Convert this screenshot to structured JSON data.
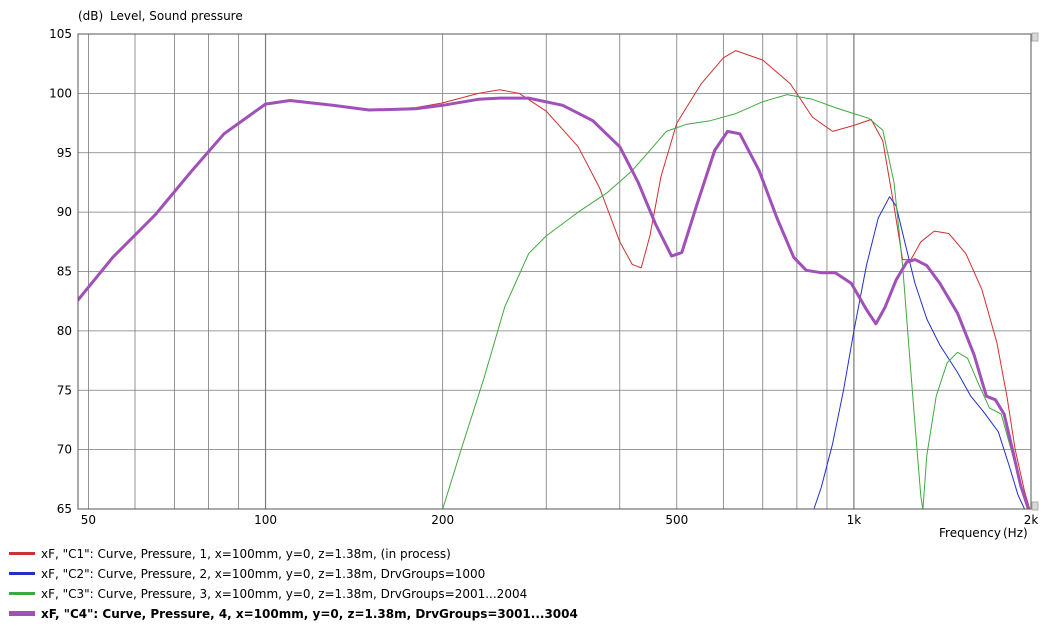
{
  "chart_data": {
    "type": "line",
    "y_unit": "(dB)",
    "ylabel": "Level, Sound pressure",
    "xlabel": "Frequency",
    "x_unit": "(Hz)",
    "xscale": "log",
    "xlim": [
      48,
      2000
    ],
    "ylim": [
      65,
      105
    ],
    "yticks": [
      65,
      70,
      75,
      80,
      85,
      90,
      95,
      100,
      105
    ],
    "xticks": [
      {
        "value": 50,
        "label": "50"
      },
      {
        "value": 100,
        "label": "100"
      },
      {
        "value": 200,
        "label": "200"
      },
      {
        "value": 500,
        "label": "500"
      },
      {
        "value": 1000,
        "label": "1k"
      },
      {
        "value": 2000,
        "label": "2k"
      }
    ],
    "grid": true,
    "legend_position": "bottom",
    "series": [
      {
        "name": "xF, \"C1\": Curve, Pressure, 1, x=100mm, y=0, z=1.38m, (in process)",
        "color": "#d03030",
        "points": [
          [
            48,
            82.6
          ],
          [
            55,
            86.2
          ],
          [
            65,
            89.8
          ],
          [
            75,
            93.5
          ],
          [
            85,
            96.6
          ],
          [
            100,
            99.1
          ],
          [
            110,
            99.4
          ],
          [
            130,
            99.0
          ],
          [
            150,
            98.6
          ],
          [
            180,
            98.8
          ],
          [
            200,
            99.2
          ],
          [
            230,
            100.0
          ],
          [
            250,
            100.3
          ],
          [
            270,
            100.0
          ],
          [
            300,
            98.5
          ],
          [
            340,
            95.5
          ],
          [
            370,
            92.0
          ],
          [
            400,
            87.5
          ],
          [
            420,
            85.6
          ],
          [
            435,
            85.3
          ],
          [
            450,
            88.0
          ],
          [
            470,
            93.0
          ],
          [
            500,
            97.5
          ],
          [
            550,
            100.8
          ],
          [
            600,
            103.0
          ],
          [
            630,
            103.6
          ],
          [
            700,
            102.8
          ],
          [
            780,
            100.8
          ],
          [
            850,
            98.0
          ],
          [
            920,
            96.8
          ],
          [
            1000,
            97.3
          ],
          [
            1070,
            97.8
          ],
          [
            1120,
            96.0
          ],
          [
            1170,
            90.5
          ],
          [
            1210,
            86.0
          ],
          [
            1250,
            86.0
          ],
          [
            1300,
            87.5
          ],
          [
            1370,
            88.4
          ],
          [
            1450,
            88.2
          ],
          [
            1550,
            86.5
          ],
          [
            1650,
            83.5
          ],
          [
            1750,
            79.0
          ],
          [
            1820,
            74.5
          ],
          [
            1880,
            70.0
          ],
          [
            1950,
            66.5
          ],
          [
            1990,
            65.0
          ]
        ]
      },
      {
        "name": "xF, \"C2\": Curve, Pressure, 2, x=100mm, y=0, z=1.38m, DrvGroups=1000",
        "color": "#2030c8",
        "points": [
          [
            855,
            65.0
          ],
          [
            880,
            66.8
          ],
          [
            920,
            70.5
          ],
          [
            960,
            75.0
          ],
          [
            1000,
            80.0
          ],
          [
            1050,
            85.5
          ],
          [
            1100,
            89.5
          ],
          [
            1150,
            91.3
          ],
          [
            1180,
            90.5
          ],
          [
            1220,
            87.5
          ],
          [
            1270,
            84.0
          ],
          [
            1330,
            81.0
          ],
          [
            1400,
            78.8
          ],
          [
            1500,
            76.5
          ],
          [
            1580,
            74.5
          ],
          [
            1660,
            73.2
          ],
          [
            1760,
            71.5
          ],
          [
            1840,
            68.5
          ],
          [
            1900,
            66.2
          ],
          [
            1950,
            65.0
          ]
        ]
      },
      {
        "name": "xF, \"C3\": Curve, Pressure, 3, x=100mm, y=0, z=1.38m, DrvGroups=2001...2004",
        "color": "#40a840",
        "points": [
          [
            200,
            65.0
          ],
          [
            215,
            70.0
          ],
          [
            235,
            76.0
          ],
          [
            255,
            82.0
          ],
          [
            280,
            86.5
          ],
          [
            300,
            88.0
          ],
          [
            340,
            90.0
          ],
          [
            380,
            91.6
          ],
          [
            420,
            93.5
          ],
          [
            450,
            95.2
          ],
          [
            480,
            96.8
          ],
          [
            520,
            97.4
          ],
          [
            570,
            97.7
          ],
          [
            630,
            98.3
          ],
          [
            700,
            99.3
          ],
          [
            770,
            99.9
          ],
          [
            850,
            99.5
          ],
          [
            930,
            98.8
          ],
          [
            1000,
            98.3
          ],
          [
            1060,
            97.9
          ],
          [
            1120,
            96.9
          ],
          [
            1170,
            92.5
          ],
          [
            1210,
            85.5
          ],
          [
            1250,
            76.5
          ],
          [
            1280,
            70.0
          ],
          [
            1300,
            66.0
          ],
          [
            1310,
            65.0
          ],
          [
            1330,
            69.5
          ],
          [
            1380,
            74.5
          ],
          [
            1440,
            77.3
          ],
          [
            1500,
            78.2
          ],
          [
            1560,
            77.7
          ],
          [
            1630,
            75.5
          ],
          [
            1700,
            73.5
          ],
          [
            1780,
            73.0
          ],
          [
            1850,
            70.0
          ],
          [
            1920,
            67.0
          ],
          [
            1980,
            65.0
          ]
        ]
      },
      {
        "name": "xF, \"C4\": Curve, Pressure, 4, x=100mm, y=0, z=1.38m, DrvGroups=3001...3004",
        "color": "#a050b8",
        "bold": true,
        "points": [
          [
            48,
            82.6
          ],
          [
            55,
            86.2
          ],
          [
            65,
            89.8
          ],
          [
            75,
            93.5
          ],
          [
            85,
            96.6
          ],
          [
            100,
            99.1
          ],
          [
            110,
            99.4
          ],
          [
            130,
            99.0
          ],
          [
            150,
            98.6
          ],
          [
            180,
            98.7
          ],
          [
            200,
            99.0
          ],
          [
            230,
            99.5
          ],
          [
            250,
            99.6
          ],
          [
            280,
            99.6
          ],
          [
            320,
            99.0
          ],
          [
            360,
            97.7
          ],
          [
            400,
            95.5
          ],
          [
            430,
            92.5
          ],
          [
            460,
            89.0
          ],
          [
            490,
            86.3
          ],
          [
            510,
            86.6
          ],
          [
            540,
            90.5
          ],
          [
            580,
            95.2
          ],
          [
            610,
            96.8
          ],
          [
            640,
            96.6
          ],
          [
            690,
            93.5
          ],
          [
            740,
            89.5
          ],
          [
            790,
            86.2
          ],
          [
            830,
            85.1
          ],
          [
            880,
            84.9
          ],
          [
            930,
            84.9
          ],
          [
            990,
            84.0
          ],
          [
            1050,
            81.8
          ],
          [
            1090,
            80.6
          ],
          [
            1130,
            82.0
          ],
          [
            1180,
            84.3
          ],
          [
            1230,
            85.8
          ],
          [
            1270,
            86.0
          ],
          [
            1330,
            85.5
          ],
          [
            1400,
            84.0
          ],
          [
            1500,
            81.5
          ],
          [
            1600,
            78.0
          ],
          [
            1680,
            74.5
          ],
          [
            1740,
            74.2
          ],
          [
            1800,
            73.0
          ],
          [
            1860,
            70.0
          ],
          [
            1920,
            67.0
          ],
          [
            1980,
            65.0
          ]
        ]
      }
    ]
  }
}
